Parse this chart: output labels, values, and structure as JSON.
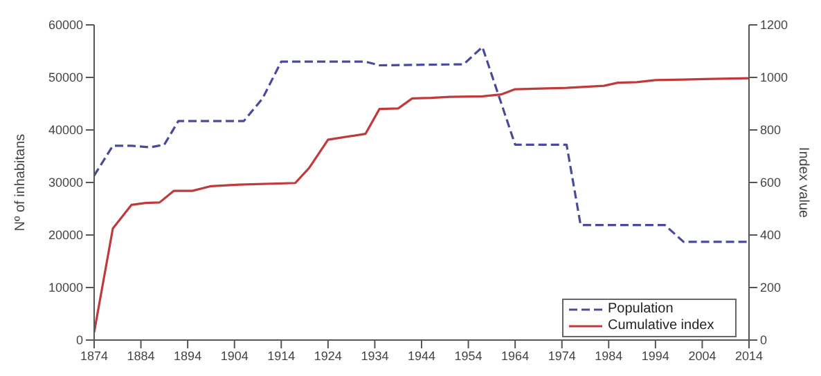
{
  "chart_data": {
    "type": "line",
    "ylabel": "Nº of inhabitans",
    "y2label": "Index value",
    "xlim": [
      1874,
      2014
    ],
    "xticks": [
      1874,
      1884,
      1894,
      1904,
      1914,
      1924,
      1934,
      1944,
      1954,
      1964,
      1974,
      1984,
      1994,
      2004,
      2014
    ],
    "ylim": [
      0,
      60000
    ],
    "yticks": [
      0,
      10000,
      20000,
      30000,
      40000,
      50000,
      60000
    ],
    "y2lim": [
      0,
      1200
    ],
    "y2ticks": [
      0,
      200,
      400,
      600,
      800,
      1000,
      1200
    ],
    "grid": false,
    "legend": "bottom right",
    "series": [
      {
        "name": "Population",
        "color": "#4a4a9a",
        "line_style": "dashed",
        "x": [
          1874,
          1878,
          1882,
          1886,
          1889,
          1892,
          1906,
          1910,
          1914,
          1932,
          1935,
          1953,
          1957,
          1964,
          1975,
          1978,
          1996,
          2000,
          2014
        ],
        "values": [
          31300,
          37000,
          37000,
          36700,
          37200,
          41700,
          41700,
          46000,
          53000,
          53000,
          52300,
          52500,
          55800,
          37200,
          37200,
          21900,
          21900,
          18700,
          18700
        ]
      },
      {
        "name": "Cumulative index",
        "color": "#c0393b",
        "line_style": "solid",
        "axis": "y2",
        "x": [
          1874,
          1878,
          1882,
          1885,
          1888,
          1891,
          1895,
          1899,
          1905,
          1917,
          1920,
          1924,
          1932,
          1935,
          1939,
          1942,
          1946,
          1950,
          1957,
          1961,
          1964,
          1975,
          1983,
          1986,
          1990,
          1994,
          2000,
          2014
        ],
        "values": [
          30,
          425,
          515,
          522,
          524,
          568,
          568,
          586,
          592,
          598,
          656,
          763,
          785,
          880,
          882,
          920,
          922,
          926,
          928,
          935,
          955,
          960,
          968,
          980,
          982,
          990,
          992,
          997
        ]
      }
    ]
  }
}
